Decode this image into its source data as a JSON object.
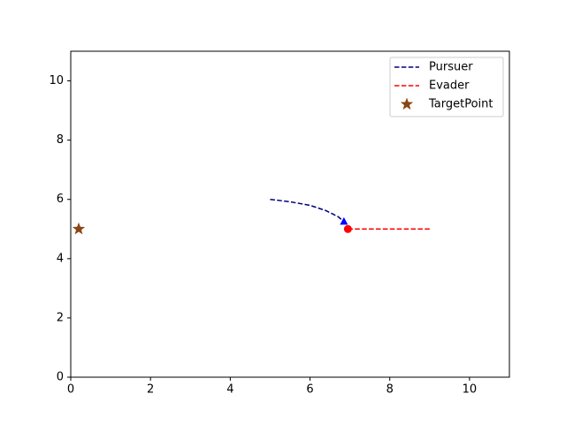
{
  "chart_data": {
    "type": "line",
    "series": [
      {
        "name": "Pursuer",
        "color": "#000080",
        "linestyle": "dashed",
        "end_marker": "triangle",
        "end_color": "#0000ff",
        "x": [
          5,
          5.5,
          6,
          6.4,
          6.7,
          6.85
        ],
        "values": [
          6,
          5.92,
          5.8,
          5.62,
          5.42,
          5.25
        ]
      },
      {
        "name": "Evader",
        "color": "#ff0000",
        "linestyle": "dashed",
        "end_marker": "circle",
        "end_color": "#ff0000",
        "x": [
          9,
          6.95
        ],
        "values": [
          5,
          5
        ]
      },
      {
        "name": "TargetPoint",
        "color": "#8b4513",
        "linestyle": "none",
        "marker": "star",
        "x": [
          0.2
        ],
        "values": [
          5
        ]
      }
    ],
    "xlim": [
      0,
      11
    ],
    "ylim": [
      0,
      11
    ],
    "xticks": [
      0,
      2,
      4,
      6,
      8,
      10
    ],
    "yticks": [
      0,
      2,
      4,
      6,
      8,
      10
    ],
    "grid": false,
    "legend": "upper right"
  }
}
